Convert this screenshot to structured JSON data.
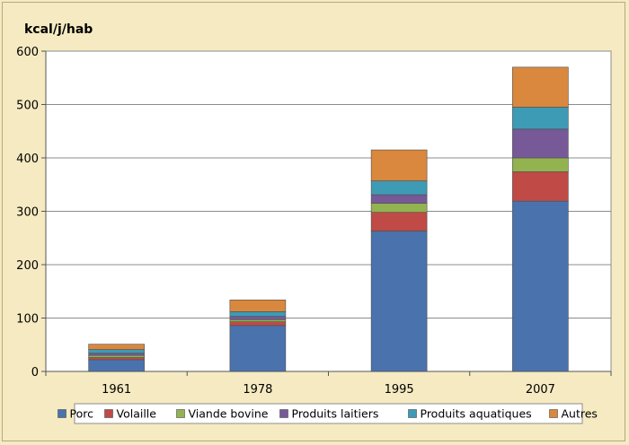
{
  "chart_data": {
    "type": "bar",
    "stacked": true,
    "title": "",
    "xlabel": "",
    "ylabel": "kcal/j/hab",
    "ylim": [
      0,
      600
    ],
    "yticks": [
      0,
      100,
      200,
      300,
      400,
      500,
      600
    ],
    "grid": true,
    "legend_position": "bottom",
    "categories": [
      "1961",
      "1978",
      "1995",
      "2007"
    ],
    "series": [
      {
        "name": "Porc",
        "color": "#4a72ad",
        "values": [
          22,
          86,
          263,
          319
        ]
      },
      {
        "name": "Volaille",
        "color": "#bf4a46",
        "values": [
          4,
          7,
          35,
          55
        ]
      },
      {
        "name": "Viande bovine",
        "color": "#93b351",
        "values": [
          4,
          4,
          17,
          26
        ]
      },
      {
        "name": "Produits laitiers",
        "color": "#775997",
        "values": [
          4,
          6,
          16,
          54
        ]
      },
      {
        "name": "Produits aquatiques",
        "color": "#3e9bb5",
        "values": [
          7,
          9,
          26,
          41
        ]
      },
      {
        "name": "Autres",
        "color": "#d9883d",
        "values": [
          10,
          22,
          58,
          75
        ]
      }
    ]
  }
}
